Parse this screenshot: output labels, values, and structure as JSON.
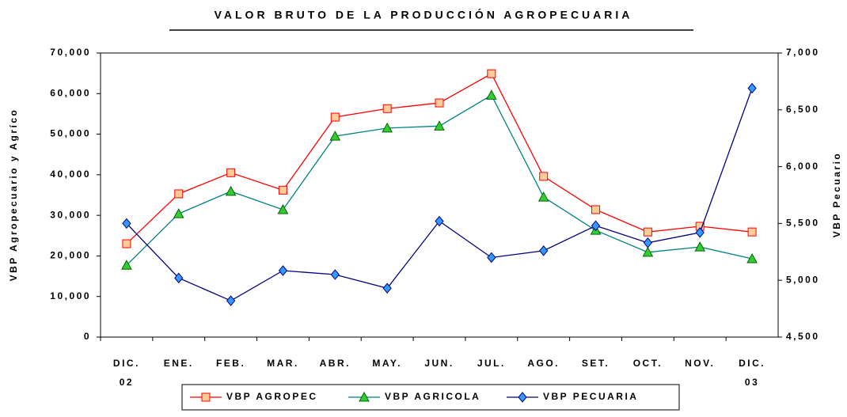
{
  "chart_data": {
    "type": "line",
    "title": "VALOR BRUTO DE LA PRODUCCIÓN AGROPECUARIA",
    "y_label": "VBP Agropecuario y Agríco",
    "y2_label": "VBP Pecuario",
    "categories": [
      "DIC.",
      "ENE.",
      "FEB.",
      "MAR.",
      "ABR.",
      "MAY.",
      "JUN.",
      "JUL.",
      "AGO.",
      "SET.",
      "OCT.",
      "NOV.",
      "DIC."
    ],
    "category_years": [
      "02",
      null,
      null,
      null,
      null,
      null,
      null,
      null,
      null,
      null,
      null,
      null,
      "03"
    ],
    "ylim": [
      0,
      70000
    ],
    "yticks": [
      0,
      {
        "value": 10000,
        "label": "10,000"
      },
      {
        "value": 20000,
        "label": "20,000"
      },
      {
        "value": 30000,
        "label": "30,000"
      },
      {
        "value": 40000,
        "label": "40,000"
      },
      {
        "value": 50000,
        "label": "50,000"
      },
      {
        "value": 60000,
        "label": "60,000"
      },
      {
        "value": 70000,
        "label": "70,000"
      }
    ],
    "y2lim": [
      4500,
      7000
    ],
    "y2ticks": [
      {
        "value": 4500,
        "label": "4,500"
      },
      {
        "value": 5000,
        "label": "5,000"
      },
      {
        "value": 5500,
        "label": "5,500"
      },
      {
        "value": 6000,
        "label": "6,000"
      },
      {
        "value": 6500,
        "label": "6,500"
      },
      {
        "value": 7000,
        "label": "7,000"
      }
    ],
    "legend": "bottom",
    "series": [
      {
        "name": "VBP AGROPEC",
        "color": "#ff0000",
        "marker": "square",
        "marker_color": "#ffcc99",
        "values": [
          23000,
          35300,
          40500,
          36200,
          54200,
          56300,
          57700,
          64900,
          39600,
          31400,
          25900,
          27300,
          25900
        ]
      },
      {
        "name": "VBP AGRICOLA",
        "color": "#008080",
        "marker": "triangle",
        "marker_color": "#33cc33",
        "values": [
          17700,
          30400,
          35900,
          31400,
          49500,
          51500,
          52000,
          59600,
          34500,
          26300,
          20900,
          22200,
          19300
        ]
      },
      {
        "name": "VBP PECUARIA",
        "color": "#000080",
        "marker": "diamond",
        "marker_color": "#3399ff",
        "axis": "y2",
        "values": [
          5500,
          5020,
          4820,
          5085,
          5050,
          4930,
          5520,
          5200,
          5260,
          5480,
          5330,
          5420,
          6690
        ]
      }
    ]
  }
}
